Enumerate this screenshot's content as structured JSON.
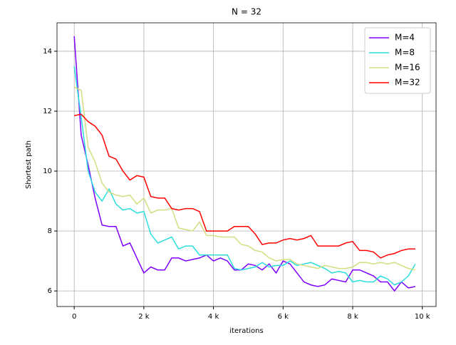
{
  "chart_data": {
    "type": "line",
    "title": "N = 32",
    "x_label": "iterations",
    "y_label": "Shortest path",
    "x": [
      0,
      200,
      400,
      600,
      800,
      1000,
      1200,
      1400,
      1600,
      1800,
      2000,
      2200,
      2400,
      2600,
      2800,
      3000,
      3200,
      3400,
      3600,
      3800,
      4000,
      4200,
      4400,
      4600,
      4800,
      5000,
      5200,
      5400,
      5600,
      5800,
      6000,
      6200,
      6400,
      6600,
      6800,
      7000,
      7200,
      7400,
      7600,
      7800,
      8000,
      8200,
      8400,
      8600,
      8800,
      9000,
      9200,
      9400,
      9600,
      9800
    ],
    "series": [
      {
        "name": "M=4",
        "color": "#8000ff",
        "values": [
          14.5,
          11.2,
          10.2,
          9.1,
          8.2,
          8.15,
          8.15,
          7.5,
          7.6,
          7.1,
          6.6,
          6.8,
          6.7,
          6.7,
          7.1,
          7.1,
          7.0,
          7.05,
          7.1,
          7.2,
          7.0,
          7.1,
          7.0,
          6.7,
          6.7,
          6.9,
          6.85,
          6.7,
          6.9,
          6.6,
          7.0,
          6.9,
          6.6,
          6.3,
          6.2,
          6.15,
          6.2,
          6.4,
          6.35,
          6.3,
          6.7,
          6.7,
          6.6,
          6.5,
          6.3,
          6.3,
          6.0,
          6.3,
          6.1,
          6.15
        ]
      },
      {
        "name": "M=8",
        "color": "#2adddd",
        "values": [
          13.5,
          11.8,
          10.0,
          9.3,
          9.0,
          9.4,
          8.9,
          8.7,
          8.75,
          8.6,
          8.65,
          7.9,
          7.6,
          7.7,
          7.8,
          7.4,
          7.5,
          7.5,
          7.2,
          7.2,
          7.2,
          7.2,
          7.2,
          6.75,
          6.7,
          6.75,
          6.8,
          6.95,
          6.8,
          6.85,
          6.85,
          7.0,
          6.85,
          6.9,
          6.95,
          6.85,
          6.75,
          6.6,
          6.65,
          6.6,
          6.3,
          6.35,
          6.3,
          6.3,
          6.5,
          6.4,
          6.2,
          6.3,
          6.5,
          6.9
        ]
      },
      {
        "name": "M=16",
        "color": "#d4dd80",
        "values": [
          12.8,
          12.7,
          10.8,
          10.3,
          9.6,
          9.3,
          9.2,
          9.15,
          9.2,
          8.9,
          9.1,
          8.6,
          8.7,
          8.7,
          8.75,
          8.1,
          8.05,
          8.0,
          8.3,
          7.85,
          7.85,
          7.8,
          7.8,
          7.8,
          7.55,
          7.5,
          7.35,
          7.3,
          7.1,
          7.0,
          7.05,
          7.05,
          6.9,
          6.85,
          6.8,
          6.75,
          6.85,
          6.8,
          6.75,
          6.75,
          6.8,
          6.95,
          6.95,
          6.9,
          6.95,
          6.9,
          6.95,
          6.85,
          6.75,
          6.7
        ]
      },
      {
        "name": "M=32",
        "color": "#ff0000",
        "values": [
          11.85,
          11.9,
          11.65,
          11.5,
          11.2,
          10.5,
          10.4,
          10.0,
          9.7,
          9.85,
          9.8,
          9.15,
          9.1,
          9.1,
          8.75,
          8.7,
          8.75,
          8.75,
          8.65,
          8.0,
          8.0,
          8.0,
          8.0,
          8.15,
          8.15,
          8.15,
          7.9,
          7.55,
          7.6,
          7.6,
          7.7,
          7.75,
          7.7,
          7.75,
          7.85,
          7.5,
          7.5,
          7.5,
          7.5,
          7.6,
          7.65,
          7.35,
          7.35,
          7.3,
          7.1,
          7.2,
          7.25,
          7.35,
          7.4,
          7.4
        ]
      }
    ],
    "xlim": [
      -495,
      10395
    ],
    "ylim": [
      5.48,
      14.95
    ],
    "xticks": [
      0,
      {
        "value": 2000,
        "label": "2 k"
      },
      {
        "value": 4000,
        "label": "4 k"
      },
      {
        "value": 6000,
        "label": "6 k"
      },
      {
        "value": 8000,
        "label": "8 k"
      },
      {
        "value": 10000,
        "label": "10 k"
      }
    ],
    "yticks": [
      6,
      8,
      10,
      12,
      14
    ],
    "grid": true,
    "legend": "upper right"
  }
}
